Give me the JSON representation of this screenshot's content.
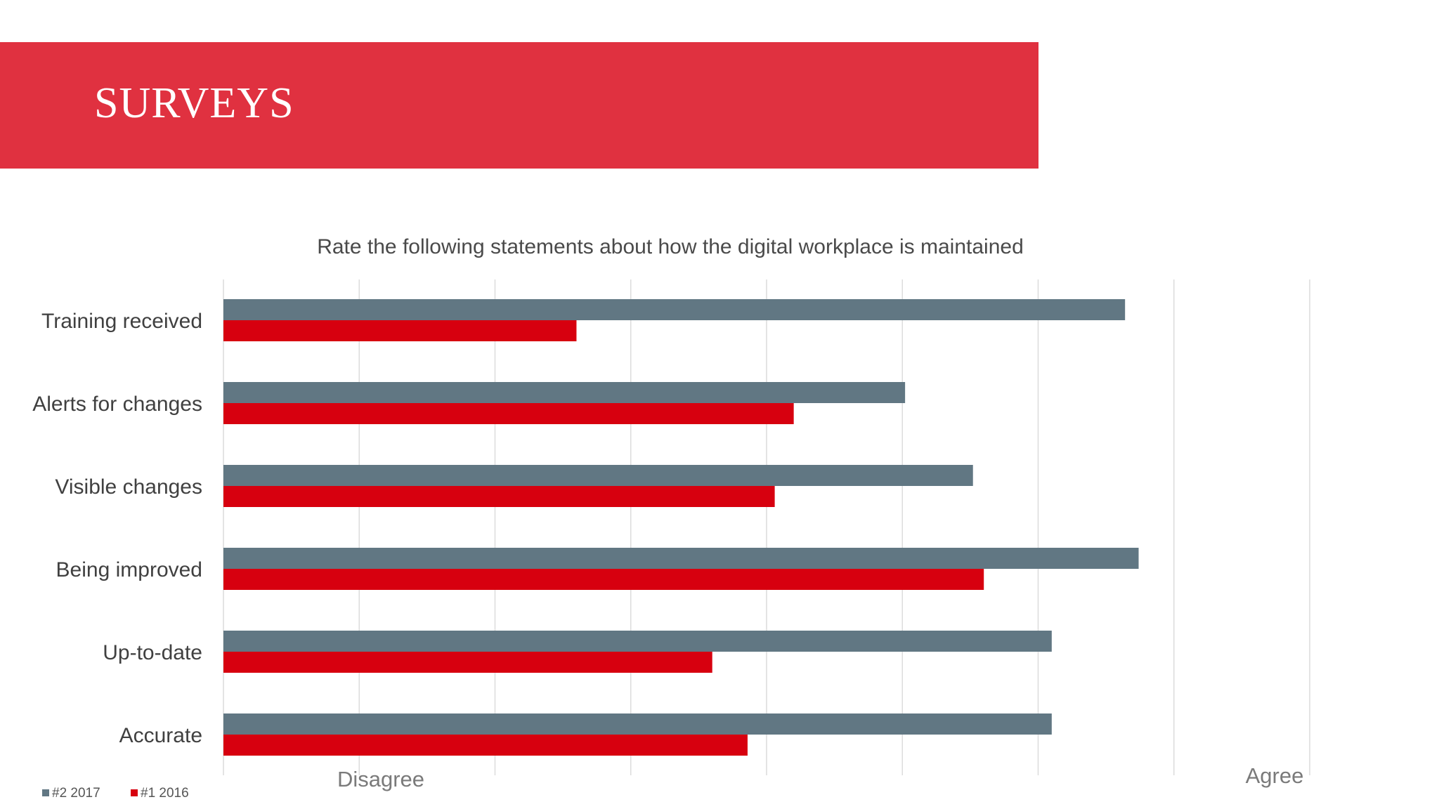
{
  "header": {
    "title": "SURVEYS"
  },
  "colors": {
    "banner": "#e03140",
    "series_2017": "#617783",
    "series_2016": "#d7000f",
    "grid": "#dcdcdc"
  },
  "chart_data": {
    "type": "bar",
    "orientation": "horizontal",
    "title": "Rate the following statements about how the digital workplace is maintained",
    "categories": [
      "Training received",
      "Alerts for changes",
      "Visible changes",
      "Being improved",
      "Up-to-date",
      "Accurate"
    ],
    "series": [
      {
        "name": "#2 2017",
        "color": "#617783",
        "values": [
          6.64,
          5.02,
          5.52,
          6.74,
          6.1,
          6.1
        ]
      },
      {
        "name": "#1 2016",
        "color": "#d7000f",
        "values": [
          2.6,
          4.2,
          4.06,
          5.6,
          3.6,
          3.86
        ]
      }
    ],
    "xlim": [
      0,
      8
    ],
    "grid": true,
    "scale_labels": {
      "low": "Disagree",
      "high": "Agree"
    },
    "legend": "bottom-left"
  }
}
